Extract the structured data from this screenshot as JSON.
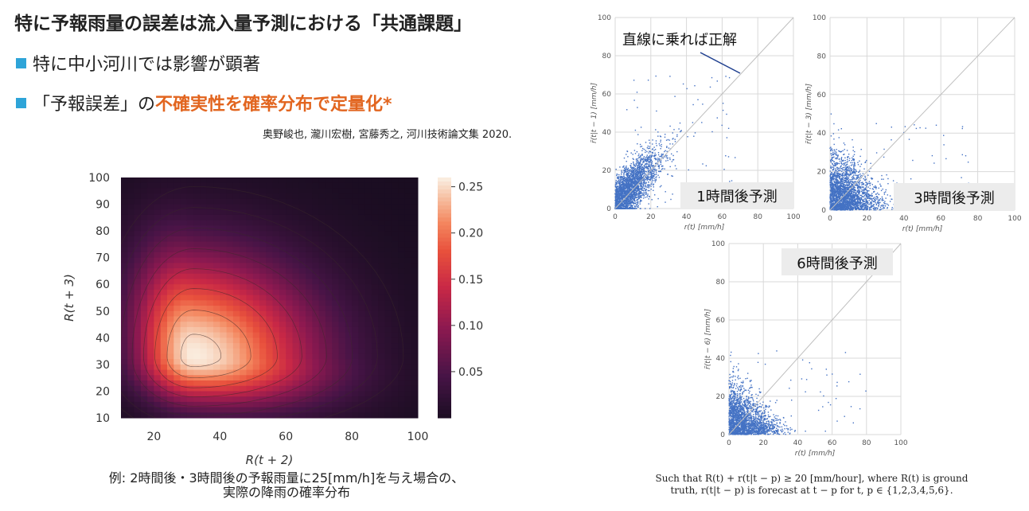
{
  "slide": {
    "title": "特に予報雨量の誤差は流入量予測における「共通課題」",
    "bullets": [
      {
        "text": "特に中小河川では影響が顕著"
      },
      {
        "prefix": "「予報誤差」の",
        "highlight": "不確実性を確率分布で定量化*"
      }
    ],
    "citation": "奥野峻也, 瀧川宏樹, 宮藤秀之, 河川技術論文集 2020.",
    "caption_left_line1": "例: 2時間後・3時間後の予報雨量に25[mm/h]を与え場合の、",
    "caption_left_line2": "実際の降雨の確率分布",
    "caption_right_line1": "Such that R(t) + r(t|t − p) ≥ 20 [mm/hour], where R(t) is ground",
    "caption_right_line2": "truth, r(t|t − p) is forecast at t − p for t, p ∈ {1,2,3,4,5,6}.",
    "callout": "直線に乗れば正解",
    "colors": {
      "accent_orange": "#e2651f",
      "bullet_blue": "#2ea4d8",
      "scatter_blue": "#4472c4"
    }
  },
  "chart_data": [
    {
      "type": "heatmap",
      "xlabel": "R(t + 2)",
      "ylabel": "R(t + 3)",
      "xlim": [
        10,
        100
      ],
      "ylim": [
        10,
        100
      ],
      "xticks": [
        20,
        40,
        60,
        80,
        100
      ],
      "yticks": [
        10,
        20,
        30,
        40,
        50,
        60,
        70,
        80,
        90,
        100
      ],
      "colorbar_ticks": [
        0.05,
        0.1,
        0.15,
        0.2,
        0.25
      ],
      "colorbar_range": [
        0,
        0.26
      ],
      "peak": {
        "x": 32,
        "y": 33,
        "value": 0.26
      }
    },
    {
      "type": "scatter",
      "title": "1時間後予測",
      "xlabel": "r(t) [mm/h]",
      "ylabel": "r̃(t|t − 1) [mm/h]",
      "xlim": [
        0,
        100
      ],
      "ylim": [
        0,
        100
      ],
      "xticks": [
        0,
        20,
        40,
        60,
        80,
        100
      ],
      "yticks": [
        0,
        20,
        40,
        60,
        80,
        100
      ]
    },
    {
      "type": "scatter",
      "title": "3時間後予測",
      "xlabel": "r(t) [mm/h]",
      "ylabel": "r̃(t|t − 3) [mm/h]",
      "xlim": [
        0,
        100
      ],
      "ylim": [
        0,
        100
      ],
      "xticks": [
        0,
        20,
        40,
        60,
        80,
        100
      ],
      "yticks": [
        0,
        20,
        40,
        60,
        80,
        100
      ]
    },
    {
      "type": "scatter",
      "title": "6時間後予測",
      "xlabel": "r(t) [mm/h]",
      "ylabel": "r̃(t|t − 6) [mm/h]",
      "xlim": [
        0,
        100
      ],
      "ylim": [
        0,
        100
      ],
      "xticks": [
        0,
        20,
        40,
        60,
        80,
        100
      ],
      "yticks": [
        0,
        20,
        40,
        60,
        80,
        100
      ]
    }
  ]
}
